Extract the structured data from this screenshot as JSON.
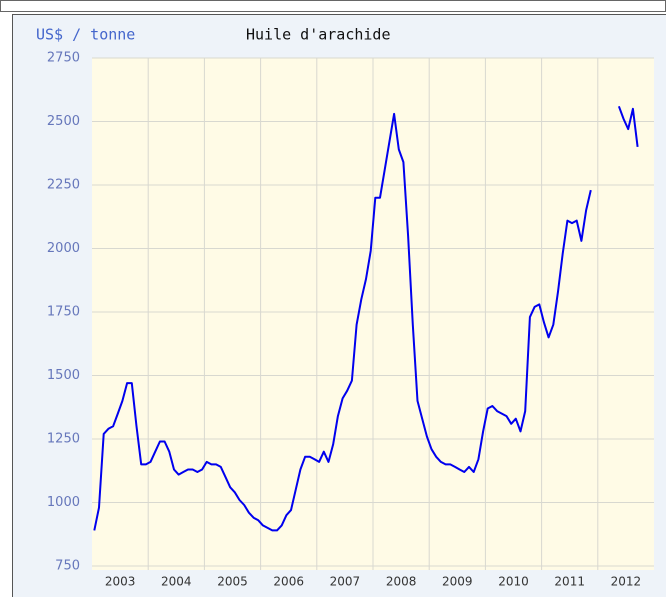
{
  "chart_data": {
    "type": "line",
    "title": "Huile d'arachide",
    "ylabel": "US$ / tonne",
    "categories": [
      null,
      null,
      null,
      null,
      null,
      null,
      "2003",
      null,
      null,
      null,
      null,
      null,
      null,
      null,
      null,
      null,
      null,
      null,
      "2004",
      null,
      null,
      null,
      null,
      null,
      null,
      null,
      null,
      null,
      null,
      null,
      "2005",
      null,
      null,
      null,
      null,
      null,
      null,
      null,
      null,
      null,
      null,
      null,
      "2006",
      null,
      null,
      null,
      null,
      null,
      null,
      null,
      null,
      null,
      null,
      null,
      "2007",
      null,
      null,
      null,
      null,
      null,
      null,
      null,
      null,
      null,
      null,
      null,
      "2008",
      null,
      null,
      null,
      null,
      null,
      null,
      null,
      null,
      null,
      null,
      null,
      "2009",
      null,
      null,
      null,
      null,
      null,
      null,
      null,
      null,
      null,
      null,
      null,
      "2010",
      null,
      null,
      null,
      null,
      null,
      null,
      null,
      null,
      null,
      null,
      null,
      "2011",
      null,
      null,
      null,
      null,
      null,
      null,
      null,
      null,
      null,
      null,
      null,
      "2012",
      null,
      null,
      null,
      null,
      null
    ],
    "series": [
      {
        "color": "#0000ee",
        "values": [
          890,
          980,
          1270,
          1290,
          1300,
          1350,
          1400,
          1470,
          1470,
          1300,
          1150,
          1150,
          1160,
          1200,
          1240,
          1240,
          1200,
          1130,
          1110,
          1120,
          1130,
          1130,
          1120,
          1130,
          1160,
          1150,
          1150,
          1140,
          1100,
          1060,
          1040,
          1010,
          990,
          960,
          940,
          930,
          910,
          900,
          890,
          890,
          910,
          950,
          970,
          1050,
          1130,
          1180,
          1180,
          1170,
          1160,
          1200,
          1160,
          1230,
          1340,
          1410,
          1440,
          1480,
          1700,
          1800,
          1880,
          1990,
          2200,
          2200,
          2310,
          2420,
          2530,
          2390,
          2340,
          2050,
          1700,
          1400,
          1330,
          1260,
          1210,
          1180,
          1160,
          1150,
          1150,
          1140,
          1130,
          1120,
          1140,
          1120,
          1170,
          1280,
          1370,
          1380,
          1360,
          1350,
          1340,
          1310,
          1330,
          1280,
          1360,
          1730,
          1770,
          1780,
          1710,
          1650,
          1700,
          1830,
          1980,
          2110,
          2100,
          2110,
          2030,
          2150,
          2230,
          null,
          null,
          null,
          null,
          null,
          2560,
          2510,
          2470,
          2550,
          2400,
          null,
          null,
          null
        ]
      }
    ],
    "ylim": [
      750,
      2750
    ],
    "yticks": [
      750,
      1000,
      1250,
      1500,
      1750,
      2000,
      2250,
      2500,
      2750
    ],
    "grid": true
  }
}
